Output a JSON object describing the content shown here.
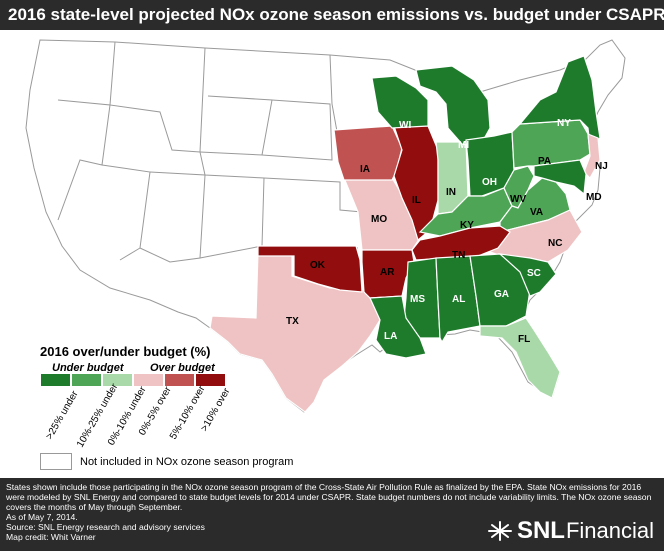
{
  "title": "2016 state-level projected NOx ozone season emissions vs. budget under CSAPR",
  "colors": {
    "dark_green": "#1e7b2c",
    "mid_green": "#4ea556",
    "light_green": "#a9d9a9",
    "light_red": "#efc3c3",
    "mid_red": "#c15252",
    "dark_red": "#920d0d",
    "not_included": "#ffffff",
    "header_bg": "#2b2b2b"
  },
  "states": {
    "WI": {
      "label": "WI",
      "category": "dark_green"
    },
    "MI": {
      "label": "MI",
      "category": "dark_green"
    },
    "NY": {
      "label": "NY",
      "category": "dark_green"
    },
    "OH": {
      "label": "OH",
      "category": "dark_green"
    },
    "PA": {
      "label": "PA",
      "category": "mid_green"
    },
    "NJ": {
      "label": "NJ",
      "category": "light_red"
    },
    "MD": {
      "label": "MD",
      "category": "dark_green"
    },
    "WV": {
      "label": "WV",
      "category": "mid_green"
    },
    "VA": {
      "label": "VA",
      "category": "mid_green"
    },
    "KY": {
      "label": "KY",
      "category": "mid_green"
    },
    "IN": {
      "label": "IN",
      "category": "light_green"
    },
    "IL": {
      "label": "IL",
      "category": "dark_red"
    },
    "IA": {
      "label": "IA",
      "category": "mid_red"
    },
    "MO": {
      "label": "MO",
      "category": "light_red"
    },
    "OK": {
      "label": "OK",
      "category": "dark_red"
    },
    "AR": {
      "label": "AR",
      "category": "dark_red"
    },
    "TN": {
      "label": "TN",
      "category": "dark_red"
    },
    "NC": {
      "label": "NC",
      "category": "light_red"
    },
    "SC": {
      "label": "SC",
      "category": "dark_green"
    },
    "GA": {
      "label": "GA",
      "category": "dark_green"
    },
    "AL": {
      "label": "AL",
      "category": "dark_green"
    },
    "MS": {
      "label": "MS",
      "category": "dark_green"
    },
    "LA": {
      "label": "LA",
      "category": "dark_green"
    },
    "TX": {
      "label": "TX",
      "category": "light_red"
    },
    "FL": {
      "label": "FL",
      "category": "light_green"
    }
  },
  "legend": {
    "title": "2016 over/under budget (%)",
    "under_group": "Under budget",
    "over_group": "Over budget",
    "categories": [
      {
        "label": ">25% under",
        "color": "#1e7b2c"
      },
      {
        "label": "10%-25% under",
        "color": "#4ea556"
      },
      {
        "label": "0%-10% under",
        "color": "#a9d9a9"
      },
      {
        "label": "0%-5% over",
        "color": "#efc3c3"
      },
      {
        "label": "5%-10% over",
        "color": "#c15252"
      },
      {
        "label": ">10% over",
        "color": "#920d0d"
      }
    ],
    "not_included": "Not included in NOx ozone season program"
  },
  "footer": {
    "notes": "States shown include those participating in the NOx ozone season program of the Cross-State Air Pollution Rule as finalized by the EPA. State NOx emissions for 2016 were modeled by SNL Energy and compared to state budget levels for 2014 under CSAPR. State budget numbers do not include variability limits. The NOx ozone season covers the months of May through September.",
    "as_of": "As of May 7, 2014.",
    "source": "Source: SNL Energy research and advisory services",
    "credit": "Map credit: Whit Varner"
  },
  "logo": {
    "part1": "SNL",
    "part2": "Financial"
  }
}
